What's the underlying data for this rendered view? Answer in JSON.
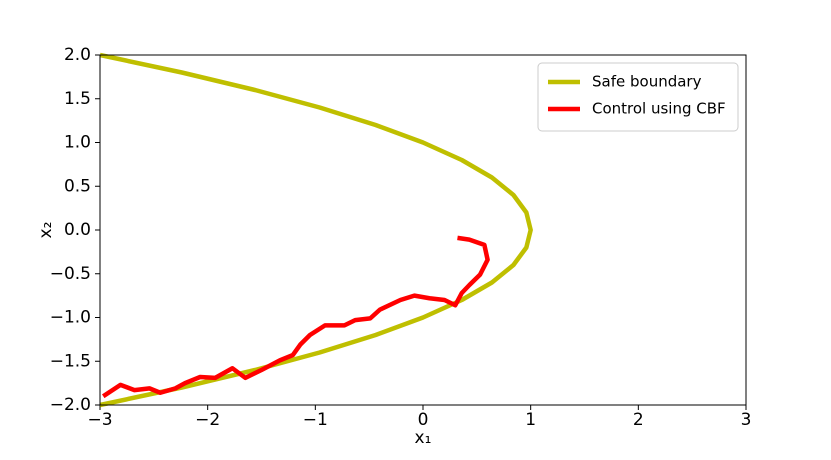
{
  "chart_data": {
    "type": "line",
    "xlabel": "x₁",
    "ylabel": "x₂",
    "xlim": [
      -3,
      3
    ],
    "ylim": [
      -2,
      2
    ],
    "xticks": [
      {
        "value": -3,
        "label": "−3"
      },
      {
        "value": -2,
        "label": "−2"
      },
      {
        "value": -1,
        "label": "−1"
      },
      0,
      1,
      2,
      3
    ],
    "yticks": [
      {
        "value": 2,
        "label": "2.0"
      },
      {
        "value": 1.5,
        "label": "1.5"
      },
      {
        "value": 1,
        "label": "1.0"
      },
      {
        "value": 0.5,
        "label": "0.5"
      },
      {
        "value": 0,
        "label": "0.0"
      },
      {
        "value": -0.5,
        "label": "−0.5"
      },
      {
        "value": -1,
        "label": "−1.0"
      },
      {
        "value": -1.5,
        "label": "−1.5"
      },
      {
        "value": -2,
        "label": "−2.0"
      }
    ],
    "grid": false,
    "legend": "upper right",
    "series": [
      {
        "name": "Safe boundary",
        "color": "#bfbf00",
        "x": [
          -3,
          -2.24,
          -1.56,
          -0.96,
          -0.44,
          0,
          0.36,
          0.64,
          0.84,
          0.96,
          1,
          0.96,
          0.84,
          0.64,
          0.36,
          0,
          -0.44,
          -0.96,
          -1.56,
          -2.24,
          -3
        ],
        "values": [
          -2,
          -1.8,
          -1.6,
          -1.4,
          -1.2,
          -1,
          -0.8,
          -0.6,
          -0.4,
          -0.2,
          0,
          0.2,
          0.4,
          0.6,
          0.8,
          1,
          1.2,
          1.4,
          1.6,
          1.8,
          2
        ]
      },
      {
        "name": "Control using CBF",
        "color": "#ff0000",
        "x": [
          -2.97,
          -2.81,
          -2.68,
          -2.54,
          -2.44,
          -2.3,
          -2.21,
          -2.07,
          -1.93,
          -1.77,
          -1.65,
          -1.5,
          -1.33,
          -1.21,
          -1.14,
          -1.05,
          -0.91,
          -0.73,
          -0.63,
          -0.49,
          -0.4,
          -0.21,
          -0.08,
          0.06,
          0.2,
          0.3,
          0.36,
          0.43,
          0.53,
          0.6,
          0.57,
          0.43,
          0.32
        ],
        "values": [
          -1.9,
          -1.77,
          -1.83,
          -1.81,
          -1.86,
          -1.81,
          -1.75,
          -1.68,
          -1.69,
          -1.58,
          -1.69,
          -1.6,
          -1.49,
          -1.43,
          -1.31,
          -1.2,
          -1.09,
          -1.09,
          -1.03,
          -1.01,
          -0.91,
          -0.8,
          -0.75,
          -0.78,
          -0.8,
          -0.86,
          -0.72,
          -0.63,
          -0.51,
          -0.34,
          -0.17,
          -0.11,
          -0.09
        ]
      }
    ]
  }
}
